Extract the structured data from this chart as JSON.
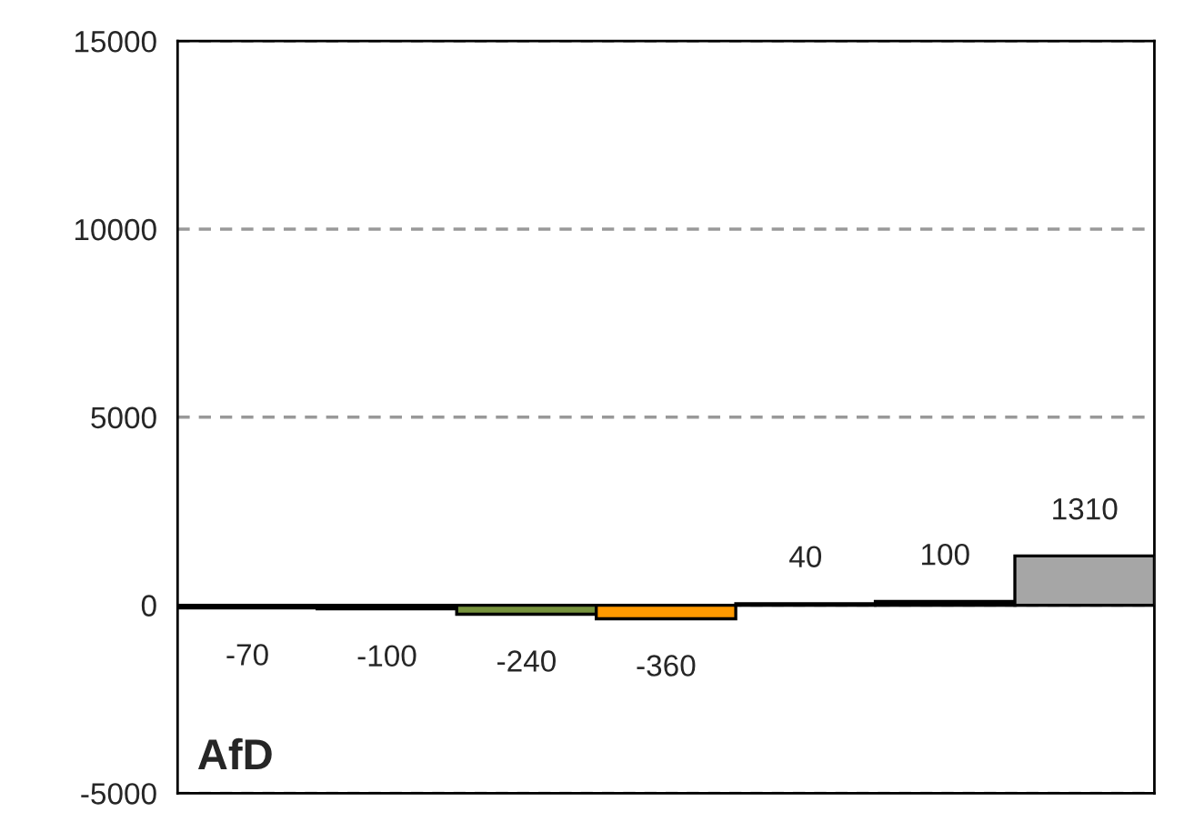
{
  "chart_data": {
    "type": "bar",
    "categories": [
      null,
      null,
      null,
      null,
      null,
      null,
      null
    ],
    "values": [
      -70,
      -100,
      -240,
      -360,
      40,
      100,
      1310
    ],
    "colors": [
      "#000000",
      "#000000",
      "#76923c",
      "#ff9900",
      "#000000",
      "#000000",
      "#a6a6a6"
    ],
    "data_labels": true,
    "ylim": [
      -5000,
      15000
    ],
    "yticks": [
      -5000,
      0,
      5000,
      10000,
      15000
    ],
    "grid": "y",
    "tick_labels": "y",
    "ref_lines": [
      {
        "axis": "y",
        "value": 0,
        "color": "#808080"
      }
    ],
    "annotations": [
      "AfD"
    ]
  }
}
